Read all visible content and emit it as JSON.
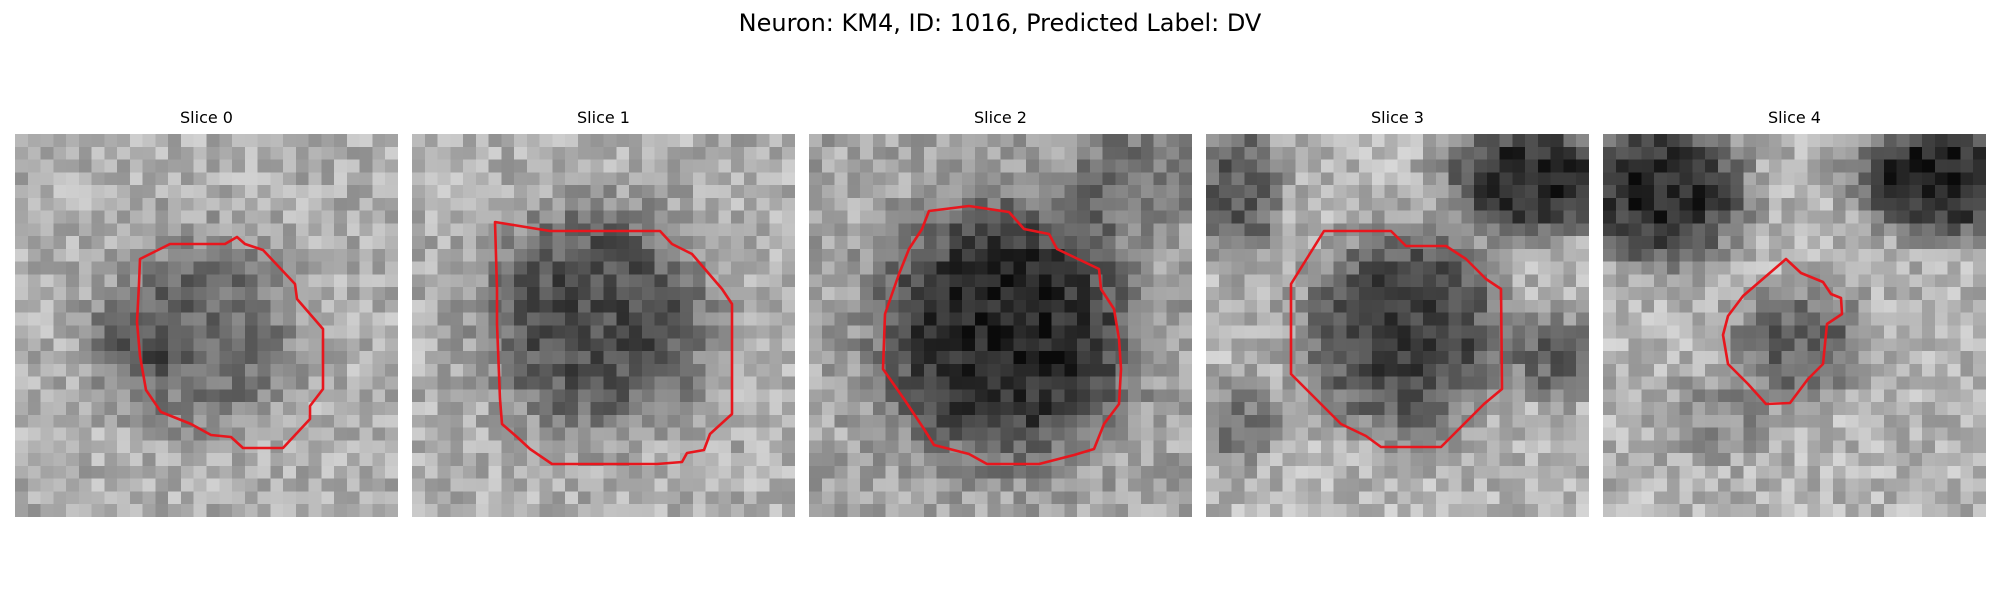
{
  "figure": {
    "title": "Neuron: KM4, ID: 1016, Predicted Label: DV"
  },
  "panels": [
    {
      "title": "Slice 0"
    },
    {
      "title": "Slice 1"
    },
    {
      "title": "Slice 2"
    },
    {
      "title": "Slice 3"
    },
    {
      "title": "Slice 4"
    }
  ],
  "colors": {
    "contour": "#e8161d",
    "background": "#ffffff"
  }
}
